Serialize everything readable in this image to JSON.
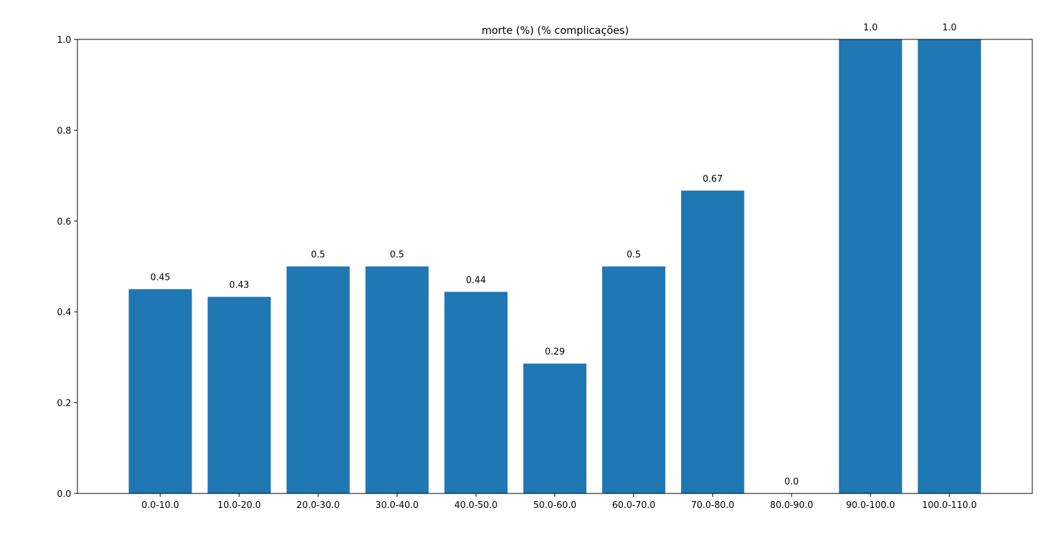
{
  "chart_data": {
    "type": "bar",
    "title": "morte (%) (% complicações)",
    "xlabel": "",
    "ylabel": "",
    "ylim": [
      0,
      1
    ],
    "yticks": [
      "0.0",
      "0.2",
      "0.4",
      "0.6",
      "0.8",
      "1.0"
    ],
    "grid": false,
    "bar_color": "#1f77b4",
    "categories": [
      "0.0-10.0",
      "10.0-20.0",
      "20.0-30.0",
      "30.0-40.0",
      "40.0-50.0",
      "50.0-60.0",
      "60.0-70.0",
      "70.0-80.0",
      "80.0-90.0",
      "90.0-100.0",
      "100.0-110.0"
    ],
    "values": [
      0.45,
      0.433,
      0.5,
      0.5,
      0.444,
      0.286,
      0.5,
      0.667,
      0.0,
      1.0,
      1.0
    ],
    "data_labels": [
      "0.45",
      "0.43",
      "0.5",
      "0.5",
      "0.44",
      "0.29",
      "0.5",
      "0.67",
      "0.0",
      "1.0",
      "1.0"
    ]
  }
}
